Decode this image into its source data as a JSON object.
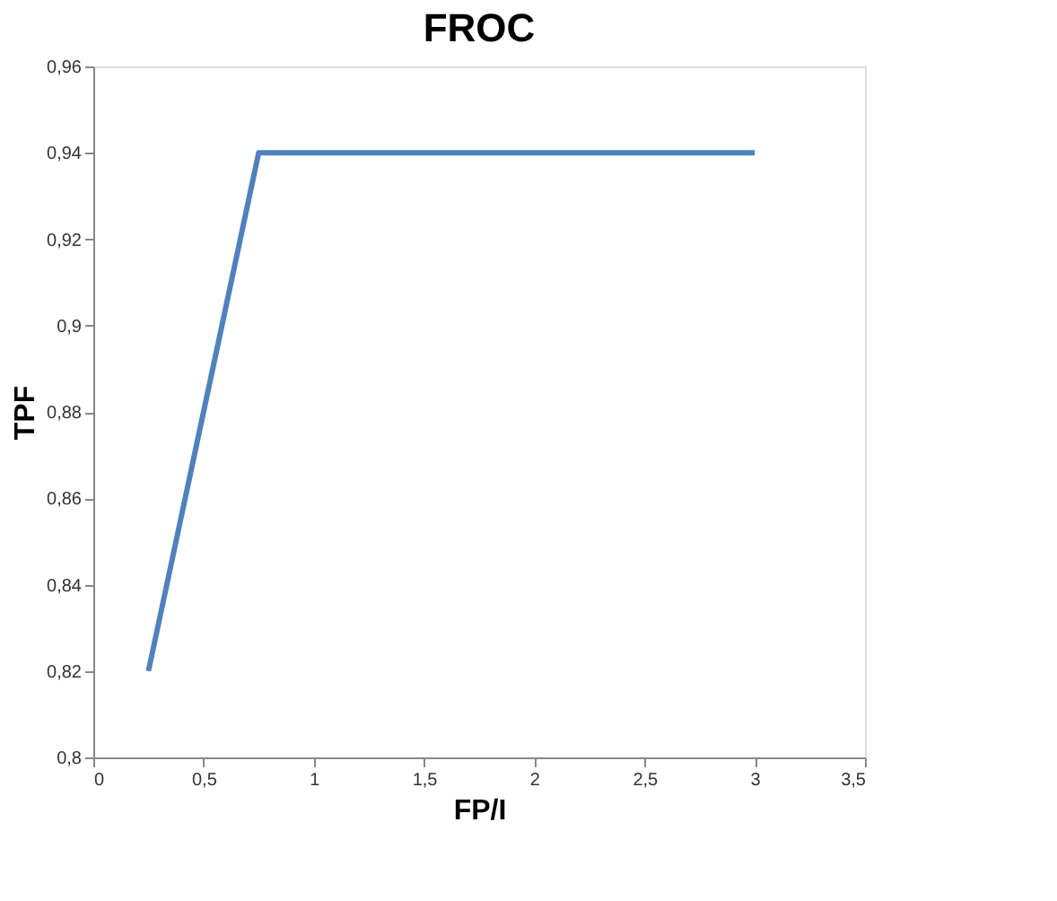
{
  "chart_data": {
    "type": "line",
    "title": "FROC",
    "xlabel": "FP/I",
    "ylabel": "TPF",
    "x": [
      0.25,
      0.75,
      3
    ],
    "series": [
      {
        "color": "#4f81bd",
        "values": [
          0.82,
          0.94,
          0.94
        ]
      }
    ],
    "xlim": [
      0,
      3.5
    ],
    "ylim": [
      0.8,
      0.96
    ],
    "xticks": [
      0,
      {
        "value": 0.5,
        "label": "0,5"
      },
      1,
      {
        "value": 1.5,
        "label": "1,5"
      },
      2,
      {
        "value": 2.5,
        "label": "2,5"
      },
      3,
      {
        "value": 3.5,
        "label": "3,5"
      }
    ],
    "yticks": [
      {
        "value": 0.8,
        "label": "0,8"
      },
      {
        "value": 0.82,
        "label": "0,82"
      },
      {
        "value": 0.84,
        "label": "0,84"
      },
      {
        "value": 0.86,
        "label": "0,86"
      },
      {
        "value": 0.88,
        "label": "0,88"
      },
      {
        "value": 0.9,
        "label": "0,9"
      },
      {
        "value": 0.92,
        "label": "0,92"
      },
      {
        "value": 0.94,
        "label": "0,94"
      },
      {
        "value": 0.96,
        "label": "0,96"
      }
    ],
    "grid": false,
    "marker": "none",
    "line_style": "solid"
  }
}
